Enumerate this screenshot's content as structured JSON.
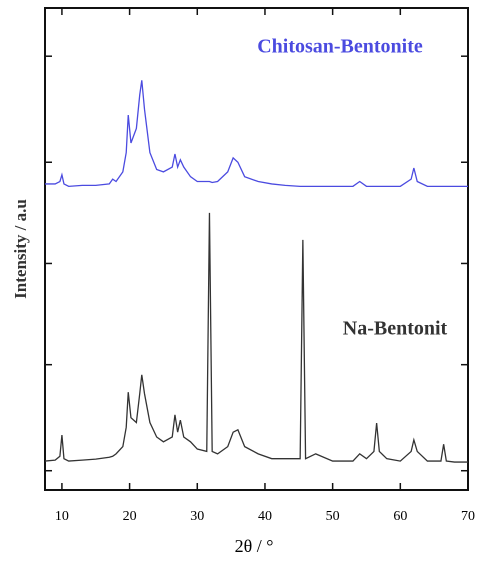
{
  "chart_data": {
    "type": "line",
    "x_label": "2θ / °",
    "y_label": "Intensity / a.u",
    "xlim": [
      7.5,
      70
    ],
    "xticks": [
      10,
      20,
      30,
      40,
      50,
      60,
      70
    ],
    "ylim": [
      0,
      100
    ],
    "yticks": [
      4,
      26,
      47,
      68,
      90
    ],
    "x": [
      7.5,
      9,
      9.7,
      10,
      10.3,
      11,
      13,
      15,
      17,
      17.5,
      18,
      19,
      19.5,
      19.8,
      20.2,
      21,
      21.5,
      21.8,
      22.2,
      23,
      24,
      25,
      26.3,
      26.7,
      27.1,
      27.5,
      28,
      29,
      30,
      31.4,
      31.8,
      32.2,
      33,
      34.5,
      35.3,
      36,
      37,
      39,
      41,
      43,
      45.2,
      45.6,
      46,
      47.5,
      50,
      53,
      54,
      55,
      56.1,
      56.5,
      56.9,
      58,
      60,
      61.6,
      62,
      62.5,
      64,
      66,
      66.4,
      66.8,
      68,
      70
    ],
    "series": [
      {
        "name": "Chitosan-Bentonite",
        "color": "#4b4be0",
        "values": [
          63.5,
          63.5,
          64,
          65.4,
          63.5,
          63,
          63.2,
          63.2,
          63.5,
          64.5,
          64,
          66,
          70,
          77.8,
          72,
          75,
          82,
          85,
          79,
          70,
          66.5,
          66,
          67,
          69.7,
          67,
          68.5,
          67,
          65,
          64,
          64,
          64,
          63.8,
          64,
          66,
          68.9,
          68,
          65,
          64,
          63.5,
          63.2,
          63,
          63,
          63,
          63,
          63,
          63,
          64,
          63,
          63,
          63,
          63,
          63,
          63,
          64.5,
          66.8,
          64,
          63,
          63,
          63,
          63,
          63,
          63
        ]
      },
      {
        "name": "Na-Bentonit",
        "color": "#333333",
        "values": [
          6,
          6.2,
          7,
          11.4,
          6.5,
          6,
          6.2,
          6.4,
          6.8,
          7,
          7.5,
          9,
          13,
          20.3,
          15,
          14,
          20,
          23.9,
          20,
          14,
          11,
          10,
          11,
          15.6,
          12,
          14.5,
          11,
          10,
          8.5,
          8,
          57.5,
          8,
          7.5,
          9,
          12,
          12.5,
          9,
          7.5,
          6.5,
          6.5,
          6.5,
          51.9,
          6.5,
          7.5,
          6,
          6,
          7.5,
          6.5,
          8,
          13.9,
          8,
          6.5,
          6,
          8,
          10.4,
          8,
          6,
          6,
          9.5,
          6,
          5.8,
          5.8
        ]
      }
    ]
  }
}
